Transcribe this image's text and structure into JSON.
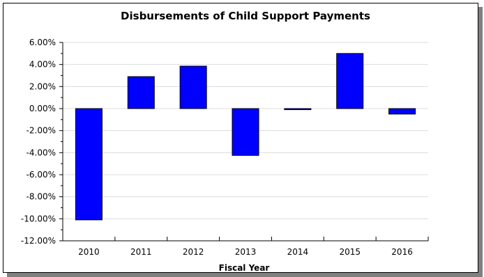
{
  "chart_data": {
    "type": "bar",
    "title": "Disbursements of Child Support Payments",
    "xlabel": "Fiscal Year",
    "ylabel": "",
    "categories": [
      "2010",
      "2011",
      "2012",
      "2013",
      "2014",
      "2015",
      "2016"
    ],
    "values": [
      -10.1,
      2.9,
      3.85,
      -4.25,
      -0.1,
      5.0,
      -0.5
    ],
    "ylim": [
      -12,
      6
    ],
    "yticks": [
      "6.00%",
      "4.00%",
      "2.00%",
      "0.00%",
      "-2.00%",
      "-4.00%",
      "-6.00%",
      "-8.00%",
      "-10.00%",
      "-12.00%"
    ],
    "ytick_values": [
      6,
      4,
      2,
      0,
      -2,
      -4,
      -6,
      -8,
      -10,
      -12
    ],
    "grid": true,
    "bar_color": "#0000FF",
    "grid_color": "#DCDCDC"
  }
}
